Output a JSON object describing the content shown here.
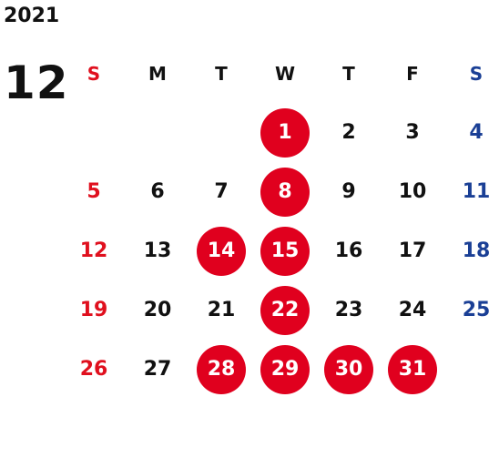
{
  "calendar": {
    "year": "2021",
    "month": "12",
    "weekdays": [
      "S",
      "M",
      "T",
      "W",
      "T",
      "F",
      "S"
    ],
    "weeks": [
      [
        "",
        "",
        "",
        "1",
        "2",
        "3",
        "4"
      ],
      [
        "5",
        "6",
        "7",
        "8",
        "9",
        "10",
        "11"
      ],
      [
        "12",
        "13",
        "14",
        "15",
        "16",
        "17",
        "18"
      ],
      [
        "19",
        "20",
        "21",
        "22",
        "23",
        "24",
        "25"
      ],
      [
        "26",
        "27",
        "28",
        "29",
        "30",
        "31",
        ""
      ]
    ],
    "highlighted_dates": [
      "1",
      "8",
      "14",
      "15",
      "22",
      "28",
      "29",
      "30",
      "31"
    ]
  },
  "colors": {
    "sunday": "#e0101e",
    "saturday": "#1a3f95",
    "weekday": "#111111",
    "highlight_background": "#e0001e",
    "highlight_text": "#ffffff"
  }
}
